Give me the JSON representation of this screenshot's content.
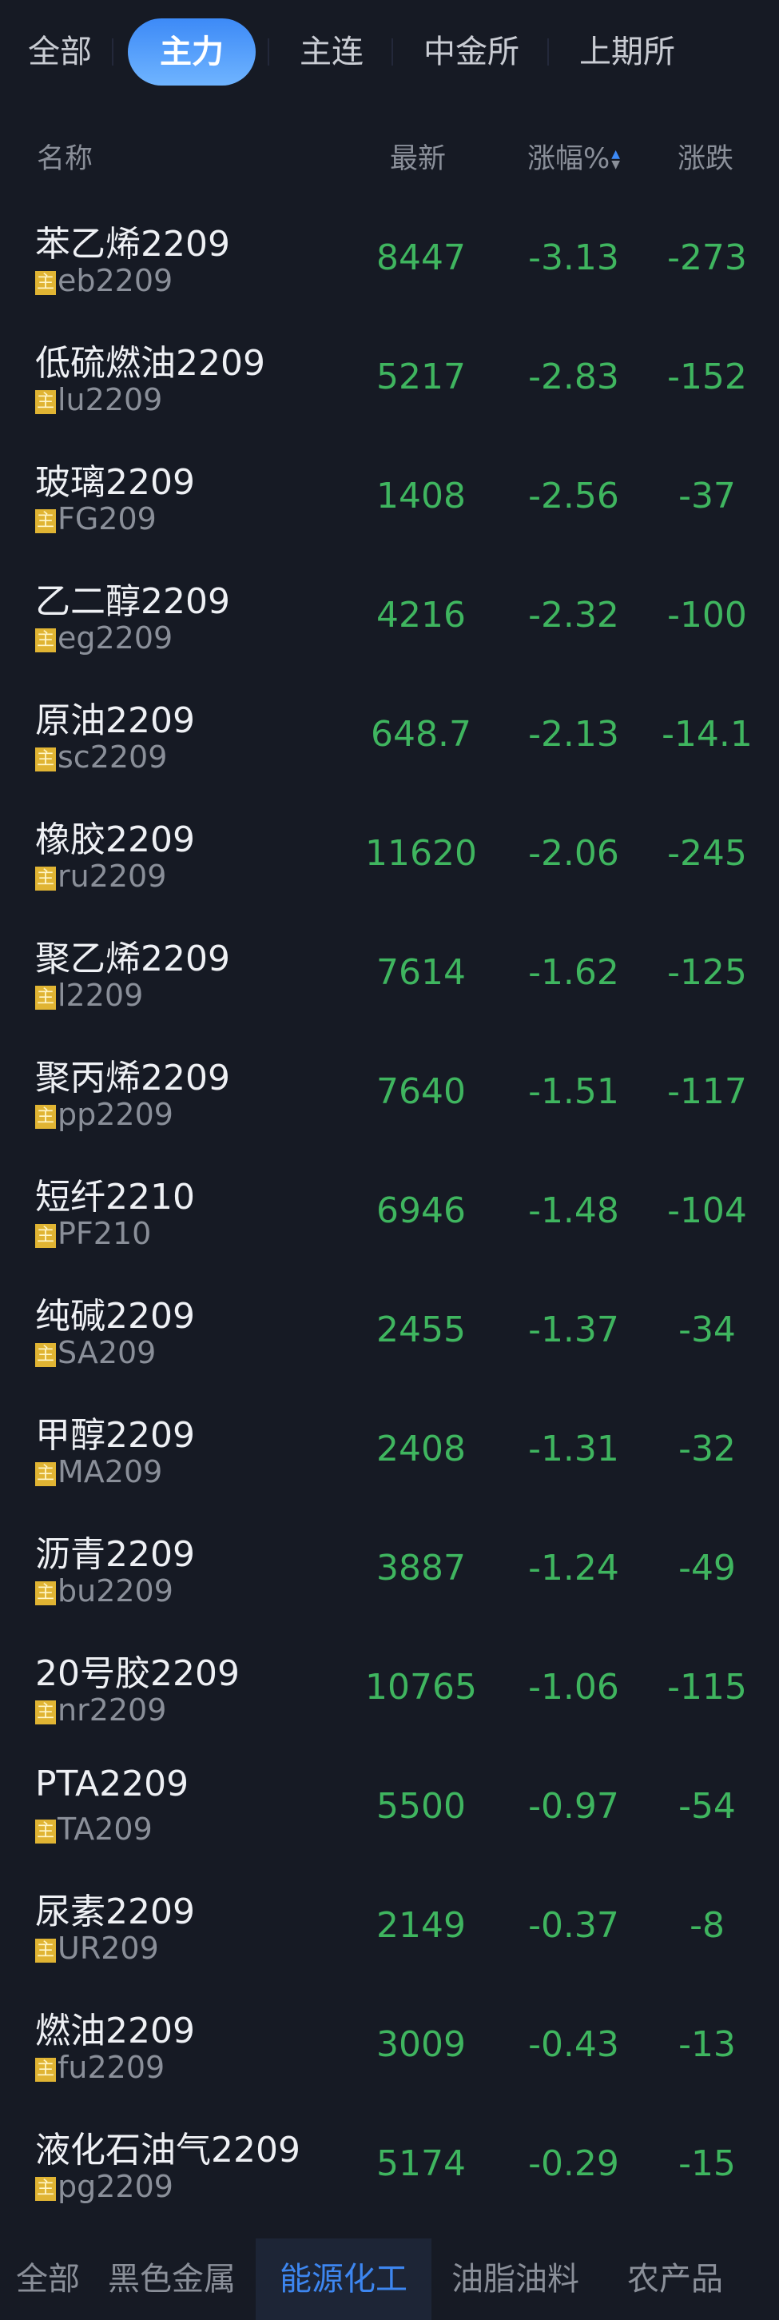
{
  "top_tabs": [
    {
      "label": "全部"
    },
    {
      "label": "主力",
      "active": true
    },
    {
      "label": "主连"
    },
    {
      "label": "中金所"
    },
    {
      "label": "上期所"
    }
  ],
  "header": {
    "name": "名称",
    "latest": "最新",
    "change_pct": "涨幅%",
    "change": "涨跌",
    "sort_icon": "sort-arrows-icon"
  },
  "badge": "主",
  "colors": {
    "down": "#3fb55f",
    "accent": "#3d8af7",
    "badge": "#e0b433"
  },
  "rows": [
    {
      "name": "苯乙烯2209",
      "code": "eb2209",
      "latest": "8447",
      "pct": "-3.13",
      "chg": "-273"
    },
    {
      "name": "低硫燃油2209",
      "code": "lu2209",
      "latest": "5217",
      "pct": "-2.83",
      "chg": "-152"
    },
    {
      "name": "玻璃2209",
      "code": "FG209",
      "latest": "1408",
      "pct": "-2.56",
      "chg": "-37"
    },
    {
      "name": "乙二醇2209",
      "code": "eg2209",
      "latest": "4216",
      "pct": "-2.32",
      "chg": "-100"
    },
    {
      "name": "原油2209",
      "code": "sc2209",
      "latest": "648.7",
      "pct": "-2.13",
      "chg": "-14.1"
    },
    {
      "name": "橡胶2209",
      "code": "ru2209",
      "latest": "11620",
      "pct": "-2.06",
      "chg": "-245"
    },
    {
      "name": "聚乙烯2209",
      "code": "l2209",
      "latest": "7614",
      "pct": "-1.62",
      "chg": "-125"
    },
    {
      "name": "聚丙烯2209",
      "code": "pp2209",
      "latest": "7640",
      "pct": "-1.51",
      "chg": "-117"
    },
    {
      "name": "短纤2210",
      "code": "PF210",
      "latest": "6946",
      "pct": "-1.48",
      "chg": "-104"
    },
    {
      "name": "纯碱2209",
      "code": "SA209",
      "latest": "2455",
      "pct": "-1.37",
      "chg": "-34"
    },
    {
      "name": "甲醇2209",
      "code": "MA209",
      "latest": "2408",
      "pct": "-1.31",
      "chg": "-32"
    },
    {
      "name": "沥青2209",
      "code": "bu2209",
      "latest": "3887",
      "pct": "-1.24",
      "chg": "-49"
    },
    {
      "name": "20号胶2209",
      "code": "nr2209",
      "latest": "10765",
      "pct": "-1.06",
      "chg": "-115"
    },
    {
      "name": "PTA2209",
      "code": "TA209",
      "latest": "5500",
      "pct": "-0.97",
      "chg": "-54"
    },
    {
      "name": "尿素2209",
      "code": "UR209",
      "latest": "2149",
      "pct": "-0.37",
      "chg": "-8"
    },
    {
      "name": "燃油2209",
      "code": "fu2209",
      "latest": "3009",
      "pct": "-0.43",
      "chg": "-13"
    },
    {
      "name": "液化石油气2209",
      "code": "pg2209",
      "latest": "5174",
      "pct": "-0.29",
      "chg": "-15"
    }
  ],
  "bottom_tabs": [
    {
      "label": "全部"
    },
    {
      "label": "黑色金属"
    },
    {
      "label": "能源化工",
      "active": true
    },
    {
      "label": "油脂油料"
    },
    {
      "label": "农产品"
    }
  ]
}
